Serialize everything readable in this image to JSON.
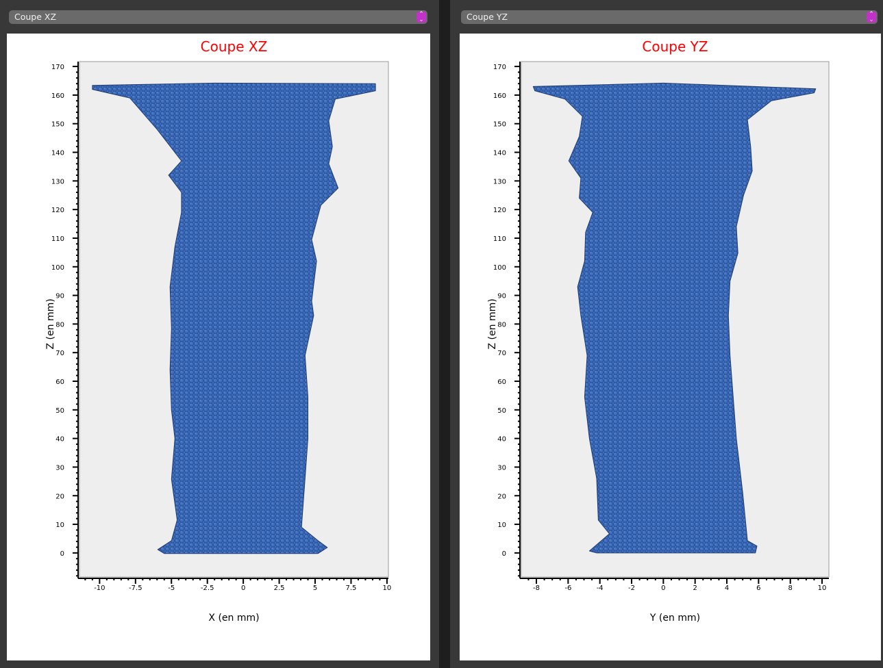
{
  "panels": [
    {
      "dropdown_value": "Coupe XZ",
      "dropdown_icon": "up-down-chevron-icon"
    },
    {
      "dropdown_value": "Coupe YZ",
      "dropdown_icon": "up-down-chevron-icon"
    }
  ],
  "chart_data": [
    {
      "type": "area",
      "title": "Coupe XZ",
      "xlabel": "X (en mm)",
      "ylabel": "Z (en mm)",
      "xlim": [
        -11.4,
        10.1
      ],
      "ylim": [
        -8.4,
        171.7
      ],
      "xticks": [
        -10,
        -7.5,
        -5,
        -2.5,
        0,
        2.5,
        5,
        7.5,
        10
      ],
      "xtick_labels": [
        "-10",
        "-7.5",
        "-5",
        "-2.5",
        "0",
        "2.5",
        "5",
        "7.5",
        "10"
      ],
      "yticks": [
        0,
        10,
        20,
        30,
        40,
        50,
        60,
        70,
        80,
        90,
        100,
        110,
        120,
        130,
        140,
        150,
        160,
        170
      ],
      "ytick_labels": [
        "0",
        "10",
        "20",
        "30",
        "40",
        "50",
        "60",
        "70",
        "80",
        "90",
        "100",
        "110",
        "120",
        "130",
        "140",
        "150",
        "160",
        "170"
      ],
      "grid": false,
      "plot_background": "#eeeeee",
      "fill_color": "#3f6fc0",
      "title_color": "#ff0000",
      "outline": [
        [
          -5.5,
          -0.2
        ],
        [
          -5.95,
          1.2
        ],
        [
          -5,
          4.3
        ],
        [
          -4.6,
          11.5
        ],
        [
          -5,
          25.8
        ],
        [
          -4.76,
          40
        ],
        [
          -5,
          50
        ],
        [
          -5.1,
          64
        ],
        [
          -5,
          78.5
        ],
        [
          -5.1,
          93
        ],
        [
          -4.76,
          107
        ],
        [
          -4.3,
          119
        ],
        [
          -4.3,
          126
        ],
        [
          -5.2,
          132
        ],
        [
          -4.3,
          137
        ],
        [
          -6,
          148
        ],
        [
          -7.9,
          159
        ],
        [
          -10.5,
          162
        ],
        [
          -10.5,
          163.4
        ],
        [
          -2,
          164.2
        ],
        [
          9.2,
          164
        ],
        [
          9.2,
          161.5
        ],
        [
          6.4,
          158.6
        ],
        [
          5.95,
          151
        ],
        [
          6.2,
          142
        ],
        [
          5.95,
          136
        ],
        [
          6.6,
          127.5
        ],
        [
          5.4,
          121.5
        ],
        [
          4.76,
          109.5
        ],
        [
          5.1,
          102
        ],
        [
          4.76,
          88
        ],
        [
          4.9,
          83
        ],
        [
          4.3,
          69
        ],
        [
          4.5,
          54.5
        ],
        [
          4.5,
          40
        ],
        [
          4.3,
          26
        ],
        [
          4.05,
          9
        ],
        [
          5.2,
          4.3
        ],
        [
          5.85,
          1.9
        ],
        [
          5.2,
          -0.2
        ]
      ]
    },
    {
      "type": "area",
      "title": "Coupe YZ",
      "xlabel": "Y (en mm)",
      "ylabel": "Z (en mm)",
      "xlim": [
        -8.95,
        10.43
      ],
      "ylim": [
        -8.4,
        171.7
      ],
      "xticks": [
        -8,
        -6,
        -4,
        -2,
        0,
        2,
        4,
        6,
        8,
        10
      ],
      "xtick_labels": [
        "-8",
        "-6",
        "-4",
        "-2",
        "0",
        "2",
        "4",
        "6",
        "8",
        "10"
      ],
      "yticks": [
        0,
        10,
        20,
        30,
        40,
        50,
        60,
        70,
        80,
        90,
        100,
        110,
        120,
        130,
        140,
        150,
        160,
        170
      ],
      "ytick_labels": [
        "0",
        "10",
        "20",
        "30",
        "40",
        "50",
        "60",
        "70",
        "80",
        "90",
        "100",
        "110",
        "120",
        "130",
        "140",
        "150",
        "160",
        "170"
      ],
      "grid": false,
      "plot_background": "#eeeeee",
      "fill_color": "#3f6fc0",
      "title_color": "#ff0000",
      "outline": [
        [
          -4.2,
          0
        ],
        [
          -4.66,
          0.7
        ],
        [
          -3.4,
          6.7
        ],
        [
          -4.1,
          11.5
        ],
        [
          -4.2,
          26
        ],
        [
          -4.66,
          40
        ],
        [
          -4.96,
          54.5
        ],
        [
          -4.8,
          69
        ],
        [
          -5.2,
          83
        ],
        [
          -5.4,
          93
        ],
        [
          -4.96,
          102
        ],
        [
          -4.9,
          112
        ],
        [
          -4.45,
          119
        ],
        [
          -5.3,
          124
        ],
        [
          -5.2,
          131
        ],
        [
          -5.96,
          137
        ],
        [
          -5.3,
          145.5
        ],
        [
          -5.1,
          152.6
        ],
        [
          -6.2,
          158.6
        ],
        [
          -8.1,
          161.5
        ],
        [
          -8.2,
          163
        ],
        [
          0,
          164.2
        ],
        [
          9.6,
          162.2
        ],
        [
          9.5,
          160.8
        ],
        [
          6.8,
          158
        ],
        [
          5.3,
          151.4
        ],
        [
          5.5,
          142
        ],
        [
          5.6,
          133.5
        ],
        [
          5.05,
          125
        ],
        [
          4.6,
          114
        ],
        [
          4.7,
          104.8
        ],
        [
          4.2,
          95
        ],
        [
          4.1,
          83
        ],
        [
          4.2,
          69
        ],
        [
          4.4,
          54.5
        ],
        [
          4.6,
          40
        ],
        [
          5,
          21
        ],
        [
          5.3,
          4.3
        ],
        [
          5.9,
          2.4
        ],
        [
          5.8,
          0
        ]
      ]
    }
  ]
}
